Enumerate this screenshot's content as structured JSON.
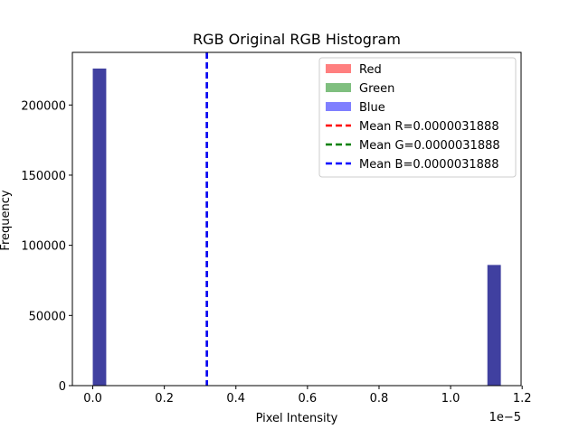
{
  "chart_data": {
    "type": "bar",
    "title": "RGB Original RGB Histogram",
    "xlabel": "Pixel Intensity",
    "ylabel": "Frequency",
    "x_offset_label": "1e−5",
    "x_scale_multiplier": 1e-05,
    "xlim": [
      -0.057,
      1.197
    ],
    "ylim": [
      0,
      237500
    ],
    "xticks": [
      "0.0",
      "0.2",
      "0.4",
      "0.6",
      "0.8",
      "1.0",
      "1.2"
    ],
    "xtick_values": [
      0.0,
      0.2,
      0.4,
      0.6,
      0.8,
      1.0,
      1.2
    ],
    "yticks": [
      "0",
      "50000",
      "100000",
      "150000",
      "200000"
    ],
    "ytick_values": [
      0,
      50000,
      100000,
      150000,
      200000
    ],
    "bin_width": 0.0376,
    "bars": [
      {
        "x_start": 0.0,
        "value": 226000
      },
      {
        "x_start": 1.1028,
        "value": 86000
      }
    ],
    "series": [
      {
        "name": "Red",
        "color": "#ff0000",
        "alpha": 0.5
      },
      {
        "name": "Green",
        "color": "#008000",
        "alpha": 0.5
      },
      {
        "name": "Blue",
        "color": "#0000ff",
        "alpha": 0.5
      }
    ],
    "mean_lines": [
      {
        "name": "Mean R=0.0000031888",
        "value": 0.31888,
        "color": "#ff0000"
      },
      {
        "name": "Mean G=0.0000031888",
        "value": 0.31888,
        "color": "#008000"
      },
      {
        "name": "Mean B=0.0000031888",
        "value": 0.31888,
        "color": "#0000ff"
      }
    ],
    "legend_position": "top-right",
    "grid": false
  }
}
